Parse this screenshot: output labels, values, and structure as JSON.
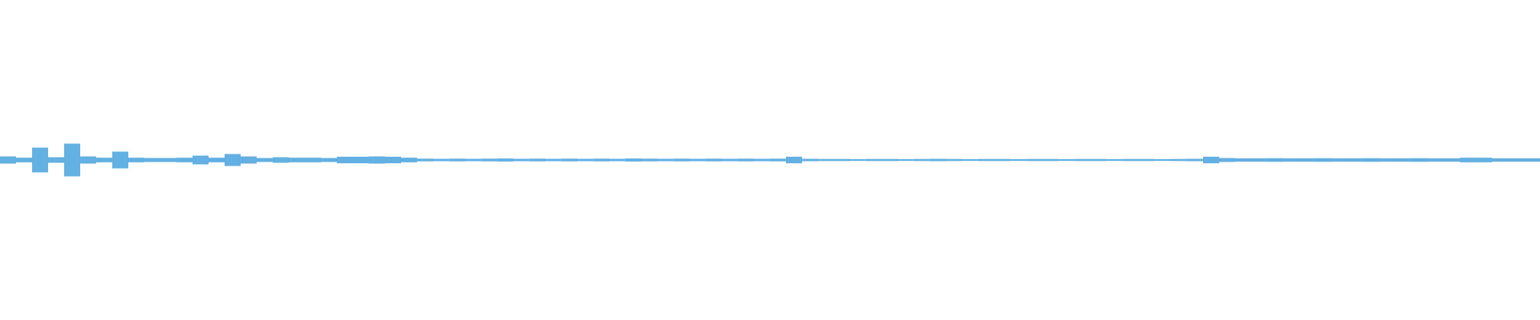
{
  "chart_data": {
    "type": "waveform",
    "color": "#63b0e3",
    "ylim": [
      -1,
      1
    ],
    "values": [
      0.02,
      0.012,
      0.075,
      0.015,
      0.1,
      0.02,
      0.012,
      0.05,
      0.012,
      0.01,
      0.01,
      0.012,
      0.025,
      0.012,
      0.035,
      0.02,
      0.01,
      0.015,
      0.012,
      0.012,
      0.01,
      0.018,
      0.018,
      0.02,
      0.018,
      0.012,
      0.006,
      0.005,
      0.006,
      0.005,
      0.006,
      0.007,
      0.005,
      0.006,
      0.005,
      0.006,
      0.005,
      0.006,
      0.005,
      0.007,
      0.006,
      0.005,
      0.006,
      0.005,
      0.006,
      0.005,
      0.006,
      0.005,
      0.006,
      0.018,
      0.005,
      0.004,
      0.004,
      0.003,
      0.004,
      0.004,
      0.003,
      0.004,
      0.005,
      0.004,
      0.003,
      0.004,
      0.004,
      0.003,
      0.004,
      0.004,
      0.003,
      0.004,
      0.004,
      0.003,
      0.004,
      0.004,
      0.003,
      0.004,
      0.005,
      0.018,
      0.01,
      0.008,
      0.008,
      0.009,
      0.008,
      0.008,
      0.009,
      0.008,
      0.008,
      0.009,
      0.008,
      0.008,
      0.009,
      0.008,
      0.008,
      0.012,
      0.012,
      0.008,
      0.008,
      0.008
    ]
  }
}
